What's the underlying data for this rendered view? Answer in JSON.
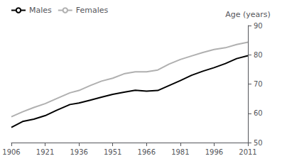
{
  "chart_data": {
    "type": "line",
    "ylabel": "Age (years)",
    "x": [
      1906,
      1911,
      1916,
      1921,
      1926,
      1932,
      1936,
      1941,
      1946,
      1951,
      1956,
      1961,
      1966,
      1971,
      1976,
      1981,
      1986,
      1991,
      1996,
      2001,
      2006,
      2011
    ],
    "series": [
      {
        "name": "Males",
        "color": "#000000",
        "values": [
          55.2,
          57.2,
          58.0,
          59.2,
          61.0,
          63.0,
          63.5,
          64.5,
          65.5,
          66.5,
          67.2,
          67.9,
          67.6,
          67.8,
          69.5,
          71.2,
          73.0,
          74.4,
          75.6,
          77.0,
          78.7,
          79.7
        ]
      },
      {
        "name": "Females",
        "color": "#b0b0b0",
        "values": [
          58.8,
          60.5,
          62.0,
          63.3,
          65.0,
          67.0,
          67.8,
          69.5,
          71.0,
          72.0,
          73.5,
          74.2,
          74.2,
          74.8,
          76.8,
          78.4,
          79.6,
          80.8,
          81.8,
          82.4,
          83.5,
          84.3
        ]
      }
    ],
    "xlim": [
      1906,
      2011
    ],
    "ylim": [
      50,
      90
    ],
    "xticks": [
      1906,
      1921,
      1936,
      1951,
      1966,
      1981,
      1996,
      2011
    ],
    "yticks": [
      50,
      60,
      70,
      80,
      90
    ],
    "grid": false,
    "legend": "upper left"
  }
}
